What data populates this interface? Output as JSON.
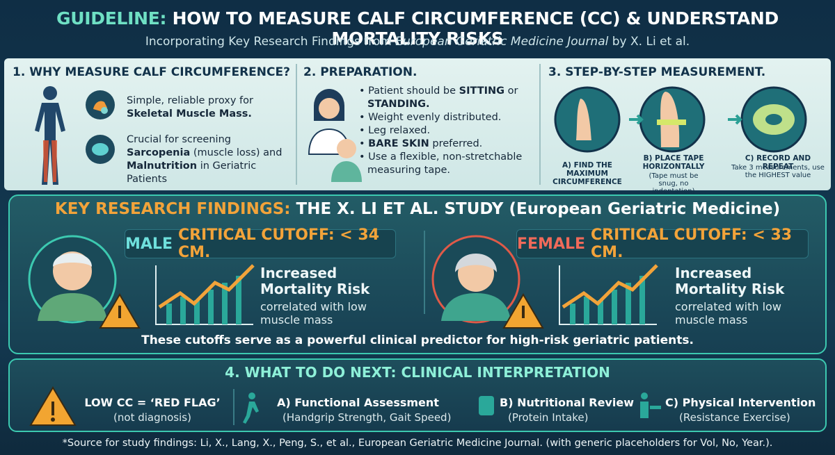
{
  "header": {
    "title_lead": "GUIDELINE:",
    "title": "HOW TO MEASURE CALF CIRCUMFERENCE (CC) & UNDERSTAND MORTALITY RISKS",
    "subtitle": [
      "Incorporating Key Research Findings from",
      "European Geriatric Medicine Journal",
      "by X. Li et al."
    ]
  },
  "why": {
    "heading": "1. WHY MEASURE CALF CIRCUMFERENCE?",
    "points": [
      [
        "Simple, reliable proxy for",
        "Skeletal Muscle Mass."
      ],
      [
        "Crucial for screening",
        "Sarcopenia",
        "(muscle loss) and",
        "Malnutrition",
        "in Geriatric Patients"
      ]
    ]
  },
  "preparation": {
    "heading": "2. PREPARATION.",
    "items": [
      [
        "Patient should be",
        "SITTING",
        "or",
        "STANDING."
      ],
      [
        "Weight evenly distributed."
      ],
      [
        "Leg relaxed."
      ],
      [
        "BARE SKIN",
        "preferred."
      ],
      [
        "Use a flexible, non-stretchable measuring tape."
      ]
    ]
  },
  "steps": {
    "heading": "3. STEP-BY-STEP MEASUREMENT.",
    "items": [
      {
        "label": "A) FIND THE MAXIMUM CIRCUMFERENCE"
      },
      {
        "label": "B) PLACE TAPE HORIZONTALLY",
        "note": "(Tape must be snug, no indentation)"
      },
      {
        "label": "C) RECORD AND REPEAT",
        "note": "Take 3 measurements, use the HIGHEST value"
      }
    ]
  },
  "findings": {
    "heading_lead": "KEY RESEARCH FINDINGS:",
    "heading": "THE X. LI ET AL. STUDY (European Geriatric Medicine)",
    "male": {
      "sex": "MALE",
      "cutoff": "CRITICAL CUTOFF: < 34 CM.",
      "risk": "Increased Mortality Risk",
      "detail": "correlated with low muscle mass"
    },
    "female": {
      "sex": "FEMALE",
      "cutoff": "CRITICAL CUTOFF: < 33 CM.",
      "risk": "Increased Mortality Risk",
      "detail": "correlated with low muscle mass"
    },
    "summary": "These cutoffs serve as a powerful clinical predictor for high-risk geriatric patients."
  },
  "next": {
    "heading": "4. WHAT TO DO NEXT: CLINICAL INTERPRETATION",
    "flag": {
      "label": "LOW CC = ‘RED FLAG’",
      "note": "(not diagnosis)"
    },
    "actions": [
      {
        "label": "A) Functional Assessment",
        "note": "(Handgrip Strength, Gait Speed)"
      },
      {
        "label": "B) Nutritional Review",
        "note": "(Protein Intake)"
      },
      {
        "label": "C) Physical Intervention",
        "note": "(Resistance Exercise)"
      }
    ]
  },
  "source": "*Source for study findings: Li, X., Lang, X., Peng, S., et al., European Geriatric Medicine Journal. (with generic placeholders for Vol, No, Year.)."
}
